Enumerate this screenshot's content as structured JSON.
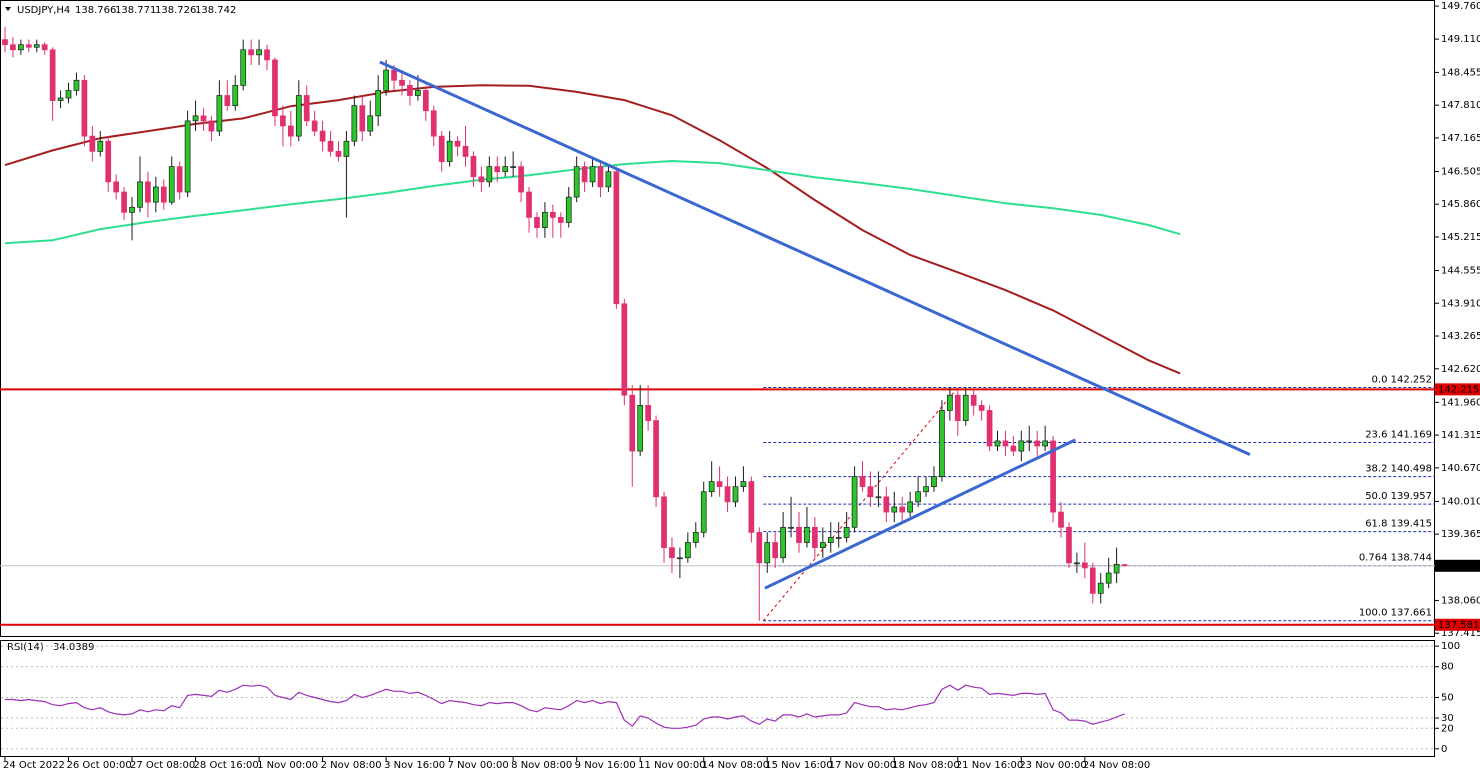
{
  "header": {
    "symbol": "USDJPY,H4"
  },
  "chart_data": {
    "type": "candlestick",
    "candles": [
      [
        149.1,
        149.35,
        148.85,
        149.0
      ],
      [
        149.0,
        149.15,
        148.75,
        148.9
      ],
      [
        148.9,
        149.1,
        148.8,
        149.0
      ],
      [
        149.0,
        149.1,
        148.85,
        148.95
      ],
      [
        148.95,
        149.1,
        148.85,
        149.0
      ],
      [
        149.0,
        149.05,
        148.8,
        148.9
      ],
      [
        148.9,
        148.95,
        147.5,
        147.9
      ],
      [
        147.9,
        148.1,
        147.75,
        147.95
      ],
      [
        147.95,
        148.25,
        147.85,
        148.1
      ],
      [
        148.1,
        148.45,
        148.0,
        148.3
      ],
      [
        148.3,
        148.4,
        147.0,
        147.2
      ],
      [
        147.2,
        147.4,
        146.7,
        146.9
      ],
      [
        146.9,
        147.3,
        146.8,
        147.1
      ],
      [
        147.1,
        147.2,
        146.1,
        146.3
      ],
      [
        146.3,
        146.45,
        145.95,
        146.1
      ],
      [
        146.1,
        146.2,
        145.55,
        145.7
      ],
      [
        145.7,
        146.0,
        145.15,
        145.8
      ],
      [
        145.8,
        146.8,
        145.7,
        146.3
      ],
      [
        146.3,
        146.5,
        145.6,
        145.9
      ],
      [
        145.9,
        146.4,
        145.7,
        146.2
      ],
      [
        146.2,
        146.35,
        145.75,
        145.9
      ],
      [
        145.9,
        146.8,
        145.85,
        146.6
      ],
      [
        146.6,
        146.7,
        145.95,
        146.1
      ],
      [
        146.1,
        147.7,
        146.0,
        147.5
      ],
      [
        147.5,
        147.9,
        147.3,
        147.6
      ],
      [
        147.6,
        147.75,
        147.3,
        147.5
      ],
      [
        147.5,
        147.6,
        147.1,
        147.3
      ],
      [
        147.3,
        148.3,
        147.2,
        148.0
      ],
      [
        148.0,
        148.3,
        147.7,
        147.8
      ],
      [
        147.8,
        148.4,
        147.7,
        148.2
      ],
      [
        148.2,
        149.1,
        148.1,
        148.9
      ],
      [
        148.9,
        149.1,
        148.6,
        148.8
      ],
      [
        148.8,
        149.1,
        148.6,
        148.9
      ],
      [
        148.9,
        149.0,
        148.5,
        148.7
      ],
      [
        148.7,
        148.75,
        147.4,
        147.6
      ],
      [
        147.6,
        147.8,
        147.0,
        147.4
      ],
      [
        147.4,
        147.7,
        147.0,
        147.2
      ],
      [
        147.2,
        148.3,
        147.1,
        148.0
      ],
      [
        148.0,
        148.2,
        147.4,
        147.5
      ],
      [
        147.5,
        147.7,
        147.2,
        147.3
      ],
      [
        147.3,
        147.5,
        146.9,
        147.1
      ],
      [
        147.1,
        147.3,
        146.8,
        146.9
      ],
      [
        146.9,
        147.1,
        146.7,
        146.8
      ],
      [
        146.8,
        147.3,
        145.6,
        147.1
      ],
      [
        147.1,
        148.0,
        147.0,
        147.8
      ],
      [
        147.8,
        148.0,
        147.1,
        147.3
      ],
      [
        147.3,
        147.9,
        147.2,
        147.6
      ],
      [
        147.6,
        148.4,
        147.4,
        148.1
      ],
      [
        148.1,
        148.7,
        148.0,
        148.5
      ],
      [
        148.5,
        148.6,
        148.1,
        148.3
      ],
      [
        148.3,
        148.5,
        148.0,
        148.2
      ],
      [
        148.2,
        148.3,
        147.8,
        148.0
      ],
      [
        148.0,
        148.4,
        147.9,
        148.1
      ],
      [
        148.1,
        148.2,
        147.5,
        147.7
      ],
      [
        147.7,
        147.8,
        147.0,
        147.2
      ],
      [
        147.2,
        147.3,
        146.5,
        146.7
      ],
      [
        146.7,
        147.3,
        146.6,
        147.1
      ],
      [
        147.1,
        147.2,
        146.8,
        147.0
      ],
      [
        147.0,
        147.4,
        146.6,
        146.8
      ],
      [
        146.8,
        146.9,
        146.2,
        146.4
      ],
      [
        146.4,
        146.6,
        146.1,
        146.3
      ],
      [
        146.3,
        146.8,
        146.2,
        146.6
      ],
      [
        146.6,
        146.8,
        146.3,
        146.5
      ],
      [
        146.5,
        146.8,
        146.4,
        146.6
      ],
      [
        146.6,
        146.9,
        146.4,
        146.6
      ],
      [
        146.6,
        146.7,
        145.9,
        146.1
      ],
      [
        146.1,
        146.2,
        145.3,
        145.6
      ],
      [
        145.6,
        145.7,
        145.2,
        145.4
      ],
      [
        145.4,
        145.9,
        145.2,
        145.7
      ],
      [
        145.7,
        145.85,
        145.2,
        145.6
      ],
      [
        145.6,
        145.7,
        145.2,
        145.5
      ],
      [
        145.5,
        146.2,
        145.4,
        146.0
      ],
      [
        146.0,
        146.8,
        145.9,
        146.6
      ],
      [
        146.6,
        146.7,
        146.1,
        146.3
      ],
      [
        146.3,
        146.8,
        146.2,
        146.6
      ],
      [
        146.6,
        146.7,
        146.0,
        146.2
      ],
      [
        146.2,
        146.6,
        146.1,
        146.5
      ],
      [
        146.5,
        146.6,
        143.8,
        143.9
      ],
      [
        143.9,
        144.0,
        141.9,
        142.1
      ],
      [
        142.1,
        142.3,
        140.3,
        141.0
      ],
      [
        141.0,
        142.3,
        140.9,
        141.9
      ],
      [
        141.9,
        142.3,
        141.4,
        141.6
      ],
      [
        141.6,
        141.7,
        139.9,
        140.1
      ],
      [
        140.1,
        140.2,
        138.8,
        139.1
      ],
      [
        139.1,
        139.3,
        138.6,
        138.9
      ],
      [
        138.9,
        139.1,
        138.5,
        138.9
      ],
      [
        138.9,
        139.4,
        138.8,
        139.2
      ],
      [
        139.2,
        139.6,
        139.1,
        139.4
      ],
      [
        139.4,
        140.4,
        139.3,
        140.2
      ],
      [
        140.2,
        140.8,
        140.1,
        140.4
      ],
      [
        140.4,
        140.7,
        140.1,
        140.3
      ],
      [
        140.3,
        140.5,
        139.8,
        140.0
      ],
      [
        140.0,
        140.5,
        139.9,
        140.3
      ],
      [
        140.3,
        140.7,
        140.2,
        140.4
      ],
      [
        140.4,
        140.5,
        139.2,
        139.4
      ],
      [
        139.4,
        139.5,
        137.66,
        138.8
      ],
      [
        138.8,
        139.4,
        138.6,
        139.2
      ],
      [
        139.2,
        139.4,
        138.7,
        138.9
      ],
      [
        138.9,
        139.8,
        138.8,
        139.5
      ],
      [
        139.5,
        140.1,
        139.3,
        139.5
      ],
      [
        139.5,
        139.8,
        139.0,
        139.2
      ],
      [
        139.2,
        139.9,
        139.1,
        139.5
      ],
      [
        139.5,
        139.7,
        138.9,
        139.1
      ],
      [
        139.1,
        139.5,
        138.9,
        139.2
      ],
      [
        139.2,
        139.6,
        139.0,
        139.3
      ],
      [
        139.3,
        139.6,
        139.1,
        139.3
      ],
      [
        139.3,
        139.8,
        139.2,
        139.5
      ],
      [
        139.5,
        140.7,
        139.4,
        140.5
      ],
      [
        140.5,
        140.8,
        140.2,
        140.3
      ],
      [
        140.3,
        140.6,
        139.9,
        140.1
      ],
      [
        140.1,
        140.6,
        139.9,
        140.1
      ],
      [
        140.1,
        140.3,
        139.6,
        139.8
      ],
      [
        139.8,
        140.2,
        139.6,
        139.9
      ],
      [
        139.9,
        140.1,
        139.6,
        139.8
      ],
      [
        139.8,
        140.2,
        139.7,
        140.0
      ],
      [
        140.0,
        140.5,
        139.9,
        140.2
      ],
      [
        140.2,
        140.5,
        140.1,
        140.3
      ],
      [
        140.3,
        140.7,
        140.2,
        140.5
      ],
      [
        140.5,
        142.0,
        140.4,
        141.8
      ],
      [
        141.8,
        142.25,
        141.6,
        142.1
      ],
      [
        142.1,
        142.2,
        141.3,
        141.6
      ],
      [
        141.6,
        142.25,
        141.5,
        142.1
      ],
      [
        142.1,
        142.2,
        141.7,
        141.9
      ],
      [
        141.9,
        142.0,
        141.6,
        141.8
      ],
      [
        141.8,
        141.9,
        141.0,
        141.1
      ],
      [
        141.1,
        141.4,
        141.0,
        141.2
      ],
      [
        141.2,
        141.4,
        140.9,
        141.1
      ],
      [
        141.1,
        141.3,
        140.9,
        141.0
      ],
      [
        141.0,
        141.4,
        140.8,
        141.2
      ],
      [
        141.2,
        141.5,
        141.0,
        141.2
      ],
      [
        141.2,
        141.4,
        140.9,
        141.1
      ],
      [
        141.1,
        141.5,
        141.0,
        141.2
      ],
      [
        141.2,
        141.3,
        139.6,
        139.8
      ],
      [
        139.8,
        140.0,
        139.3,
        139.5
      ],
      [
        139.5,
        139.6,
        138.7,
        138.8
      ],
      [
        138.8,
        139.0,
        138.6,
        138.8
      ],
      [
        138.8,
        139.2,
        138.5,
        138.7
      ],
      [
        138.7,
        138.8,
        138.0,
        138.2
      ],
      [
        138.2,
        138.6,
        138.0,
        138.4
      ],
      [
        138.4,
        138.9,
        138.3,
        138.6
      ],
      [
        138.6,
        139.1,
        138.4,
        138.77
      ],
      [
        138.766,
        138.771,
        138.726,
        138.742
      ]
    ],
    "colors": {
      "up": "#2cc52c",
      "down": "#e0306f"
    },
    "ylim": [
      137.36,
      149.88
    ],
    "yticks": [
      {
        "value": 149.76,
        "label": "149.760"
      },
      {
        "value": 149.11,
        "label": "149.110"
      },
      148.455,
      {
        "value": 147.81,
        "label": "147.810"
      },
      147.165,
      146.505,
      {
        "value": 145.86,
        "label": "145.860"
      },
      145.215,
      144.555,
      {
        "value": 143.91,
        "label": "143.910"
      },
      143.265,
      {
        "value": 142.62,
        "label": "142.620"
      },
      {
        "value": 141.96,
        "label": "141.960"
      },
      141.315,
      {
        "value": 140.67,
        "label": "140.670"
      },
      {
        "value": 140.01,
        "label": "140.010"
      },
      139.365,
      {
        "value": 138.06,
        "label": "138.060"
      },
      137.415
    ],
    "xticks": [
      {
        "value": 0,
        "label": "24 Oct 2022"
      },
      {
        "value": 8,
        "label": "26 Oct 00:00"
      },
      {
        "value": 16,
        "label": "27 Oct 08:00"
      },
      {
        "value": 24,
        "label": "28 Oct 16:00"
      },
      {
        "value": 32,
        "label": "1 Nov 00:00"
      },
      {
        "value": 40,
        "label": "2 Nov 08:00"
      },
      {
        "value": 48,
        "label": "3 Nov 16:00"
      },
      {
        "value": 56,
        "label": "7 Nov 00:00"
      },
      {
        "value": 64,
        "label": "8 Nov 08:00"
      },
      {
        "value": 72,
        "label": "9 Nov 16:00"
      },
      {
        "value": 80,
        "label": "11 Nov 00:00"
      },
      {
        "value": 88,
        "label": "14 Nov 08:00"
      },
      {
        "value": 96,
        "label": "15 Nov 16:00"
      },
      {
        "value": 104,
        "label": "17 Nov 00:00"
      },
      {
        "value": 112,
        "label": "18 Nov 08:00"
      },
      {
        "value": 120,
        "label": "21 Nov 16:00"
      },
      {
        "value": 128,
        "label": "23 Nov 00:00"
      },
      {
        "value": 136,
        "label": "24 Nov 08:00"
      }
    ],
    "moving_averages": [
      {
        "color": "#a41e1e",
        "x": [
          0,
          6,
          12,
          18,
          24,
          30,
          36,
          42,
          48,
          54,
          60,
          66,
          72,
          78,
          84,
          90,
          96,
          102,
          108,
          114,
          120,
          126,
          132,
          138,
          144,
          148
        ],
        "values": [
          146.63,
          146.92,
          147.16,
          147.3,
          147.44,
          147.55,
          147.79,
          147.91,
          148.07,
          148.17,
          148.2,
          148.19,
          148.07,
          147.91,
          147.61,
          147.12,
          146.57,
          145.94,
          145.35,
          144.86,
          144.52,
          144.17,
          143.77,
          143.28,
          142.79,
          142.53
        ]
      },
      {
        "color": "#2ee08e",
        "x": [
          0,
          6,
          12,
          18,
          24,
          30,
          36,
          42,
          48,
          54,
          60,
          66,
          72,
          78,
          84,
          90,
          96,
          102,
          108,
          114,
          120,
          126,
          132,
          138,
          144,
          148
        ],
        "values": [
          145.09,
          145.15,
          145.37,
          145.51,
          145.63,
          145.74,
          145.86,
          145.96,
          146.08,
          146.22,
          146.34,
          146.43,
          146.55,
          146.65,
          146.71,
          146.67,
          146.53,
          146.39,
          146.28,
          146.16,
          146.02,
          145.88,
          145.78,
          145.65,
          145.45,
          145.27
        ]
      }
    ],
    "trendlines": [
      {
        "color": "#3a67d2",
        "x": [
          47.2,
          156.8
        ],
        "values": [
          148.66,
          140.93
        ]
      },
      {
        "color": "#3a67d2",
        "x": [
          95.7,
          134.8
        ],
        "values": [
          138.3,
          141.22
        ]
      }
    ],
    "hlines": [
      {
        "value": 142.215,
        "color": "#e00000"
      },
      {
        "value": 137.581,
        "color": "#e00000"
      }
    ],
    "fibonacci": {
      "x": [
        95.5,
        120
      ],
      "color": "#1a2db0",
      "levels": [
        {
          "ratio": "0.0",
          "price": 142.252
        },
        {
          "ratio": "23.6",
          "price": 141.169
        },
        {
          "ratio": "38.2",
          "price": 140.498
        },
        {
          "ratio": "50.0",
          "price": 139.957
        },
        {
          "ratio": "61.8",
          "price": 139.415
        },
        {
          "ratio": "0.764",
          "price": 138.744
        },
        {
          "ratio": "100.0",
          "price": 137.661
        }
      ]
    },
    "indicator": {
      "type": "line",
      "name": "RSI(14)",
      "value": 34.0389,
      "color": "#9b30b8",
      "ylim": [
        -8,
        106
      ],
      "yticks": [
        100,
        80,
        50,
        30,
        20,
        0
      ],
      "values": [
        48,
        48,
        47,
        48,
        47,
        46,
        43,
        42,
        44,
        45,
        40,
        38,
        40,
        36,
        34,
        33,
        34,
        38,
        36,
        38,
        37,
        42,
        40,
        52,
        53,
        52,
        51,
        57,
        55,
        58,
        62,
        61,
        62,
        60,
        52,
        50,
        48,
        55,
        52,
        50,
        48,
        46,
        45,
        47,
        53,
        50,
        52,
        55,
        58,
        56,
        56,
        54,
        55,
        52,
        48,
        44,
        47,
        46,
        45,
        43,
        42,
        45,
        44,
        45,
        45,
        42,
        38,
        36,
        40,
        39,
        38,
        42,
        47,
        45,
        47,
        44,
        46,
        45,
        28,
        22,
        32,
        30,
        25,
        21,
        20,
        20,
        21,
        23,
        29,
        31,
        31,
        29,
        31,
        32,
        27,
        24,
        29,
        27,
        33,
        33,
        31,
        34,
        31,
        32,
        33,
        33,
        35,
        45,
        43,
        41,
        41,
        38,
        39,
        38,
        40,
        42,
        43,
        45,
        58,
        62,
        57,
        62,
        60,
        59,
        53,
        54,
        53,
        52,
        54,
        54,
        53,
        54,
        38,
        35,
        28,
        28,
        27,
        24,
        26,
        28,
        31,
        34.0389
      ]
    }
  }
}
